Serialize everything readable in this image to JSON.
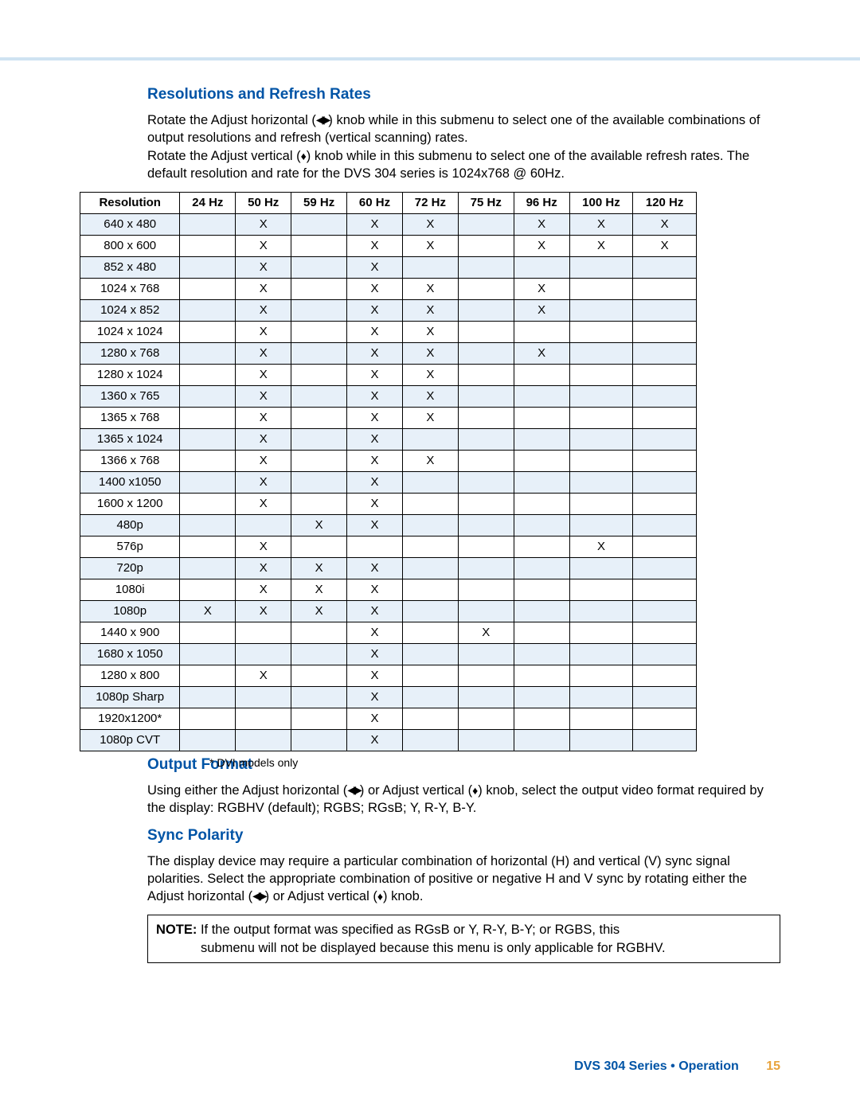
{
  "headings": {
    "section1": "Resolutions and Refresh Rates",
    "section2": "Output Format",
    "section3": "Sync Polarity"
  },
  "paragraphs": {
    "p1a": "Rotate the Adjust horizontal (",
    "p1b": ") knob while in this submenu to select one of the available combinations of output resolutions and refresh (vertical scanning) rates.",
    "p1c": "Rotate the Adjust vertical (",
    "p1d": ") knob while in this submenu to select one of the available refresh rates. The default resolution and rate for the DVS 304 series is 1024x768 @ 60Hz.",
    "p2a": "Using either the Adjust horizontal (",
    "p2b": ") or Adjust vertical (",
    "p2c": ") knob, select the output video format required by the display: RGBHV (default); RGBS; RGsB; Y, R-Y, B-Y.",
    "p3a": "The display device may require a particular combination of horizontal (H) and vertical (V) sync signal polarities. Select the appropriate combination of positive or negative H and V sync by rotating either the Adjust horizontal (",
    "p3b": ") or Adjust vertical (",
    "p3c": ") knob."
  },
  "note": {
    "label": "NOTE:",
    "line1": "If the output format was specified as RGsB or Y, R-Y, B-Y; or RGBS, this",
    "line2": "submenu will not be displayed because this menu is only applicable for RGBHV."
  },
  "footnote": "* DVI models only",
  "footer": {
    "text": "DVS 304 Series • Operation",
    "page": "15"
  },
  "table": {
    "headers": [
      "Resolution",
      "24 Hz",
      "50 Hz",
      "59 Hz",
      "60 Hz",
      "72 Hz",
      "75 Hz",
      "96 Hz",
      "100 Hz",
      "120 Hz"
    ],
    "rows": [
      {
        "res": "640 x 480",
        "c": [
          "",
          "X",
          "",
          "X",
          "X",
          "",
          "X",
          "X",
          "X"
        ]
      },
      {
        "res": "800 x 600",
        "c": [
          "",
          "X",
          "",
          "X",
          "X",
          "",
          "X",
          "X",
          "X"
        ]
      },
      {
        "res": "852 x 480",
        "c": [
          "",
          "X",
          "",
          "X",
          "",
          "",
          "",
          "",
          ""
        ]
      },
      {
        "res": "1024 x 768",
        "c": [
          "",
          "X",
          "",
          "X",
          "X",
          "",
          "X",
          "",
          ""
        ]
      },
      {
        "res": "1024 x 852",
        "c": [
          "",
          "X",
          "",
          "X",
          "X",
          "",
          "X",
          "",
          ""
        ]
      },
      {
        "res": "1024 x 1024",
        "c": [
          "",
          "X",
          "",
          "X",
          "X",
          "",
          "",
          "",
          ""
        ]
      },
      {
        "res": "1280 x 768",
        "c": [
          "",
          "X",
          "",
          "X",
          "X",
          "",
          "X",
          "",
          ""
        ]
      },
      {
        "res": "1280 x 1024",
        "c": [
          "",
          "X",
          "",
          "X",
          "X",
          "",
          "",
          "",
          ""
        ]
      },
      {
        "res": "1360 x 765",
        "c": [
          "",
          "X",
          "",
          "X",
          "X",
          "",
          "",
          "",
          ""
        ]
      },
      {
        "res": "1365 x 768",
        "c": [
          "",
          "X",
          "",
          "X",
          "X",
          "",
          "",
          "",
          ""
        ]
      },
      {
        "res": "1365 x 1024",
        "c": [
          "",
          "X",
          "",
          "X",
          "",
          "",
          "",
          "",
          ""
        ]
      },
      {
        "res": "1366 x 768",
        "c": [
          "",
          "X",
          "",
          "X",
          "X",
          "",
          "",
          "",
          ""
        ]
      },
      {
        "res": "1400 x1050",
        "c": [
          "",
          "X",
          "",
          "X",
          "",
          "",
          "",
          "",
          ""
        ]
      },
      {
        "res": "1600 x 1200",
        "c": [
          "",
          "X",
          "",
          "X",
          "",
          "",
          "",
          "",
          ""
        ]
      },
      {
        "res": "480p",
        "c": [
          "",
          "",
          "X",
          "X",
          "",
          "",
          "",
          "",
          ""
        ]
      },
      {
        "res": "576p",
        "c": [
          "",
          "X",
          "",
          "",
          "",
          "",
          "",
          "X",
          ""
        ]
      },
      {
        "res": "720p",
        "c": [
          "",
          "X",
          "X",
          "X",
          "",
          "",
          "",
          "",
          ""
        ]
      },
      {
        "res": "1080i",
        "c": [
          "",
          "X",
          "X",
          "X",
          "",
          "",
          "",
          "",
          ""
        ]
      },
      {
        "res": "1080p",
        "c": [
          "X",
          "X",
          "X",
          "X",
          "",
          "",
          "",
          "",
          ""
        ]
      },
      {
        "res": "1440 x 900",
        "c": [
          "",
          "",
          "",
          "X",
          "",
          "X",
          "",
          "",
          ""
        ]
      },
      {
        "res": "1680 x 1050",
        "c": [
          "",
          "",
          "",
          "X",
          "",
          "",
          "",
          "",
          ""
        ]
      },
      {
        "res": "1280 x 800",
        "c": [
          "",
          "X",
          "",
          "X",
          "",
          "",
          "",
          "",
          ""
        ]
      },
      {
        "res": "1080p Sharp",
        "c": [
          "",
          "",
          "",
          "X",
          "",
          "",
          "",
          "",
          ""
        ]
      },
      {
        "res": "1920x1200*",
        "c": [
          "",
          "",
          "",
          "X",
          "",
          "",
          "",
          "",
          ""
        ]
      },
      {
        "res": "1080p CVT",
        "c": [
          "",
          "",
          "",
          "X",
          "",
          "",
          "",
          "",
          ""
        ]
      }
    ]
  },
  "icons": {
    "h_arrows": "◀▶",
    "v_arrows": "♦"
  },
  "colors": {
    "heading": "#0054a6",
    "topbar": "#cfe3f2",
    "alt_row": "#e7f0f9",
    "pagenum": "#e8a33d"
  }
}
